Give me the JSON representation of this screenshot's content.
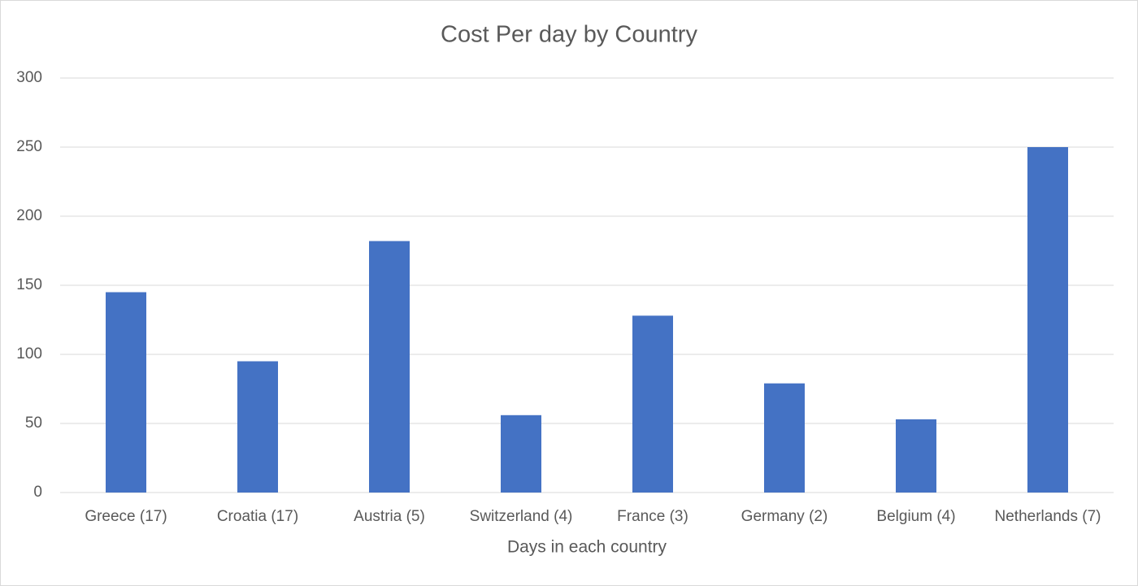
{
  "chart_data": {
    "type": "bar",
    "title": "Cost Per day by Country",
    "x_label": "Days in each country",
    "categories": [
      "Greece (17)",
      "Croatia (17)",
      "Austria (5)",
      "Switzerland (4)",
      "France (3)",
      "Germany (2)",
      "Belgium (4)",
      "Netherlands (7)"
    ],
    "values": [
      145,
      95,
      182,
      56,
      128,
      79,
      53,
      250
    ],
    "color": "#4472c4",
    "ylim": [
      0,
      300
    ],
    "yticks": [
      0,
      50,
      100,
      150,
      200,
      250,
      300
    ],
    "grid": true
  }
}
